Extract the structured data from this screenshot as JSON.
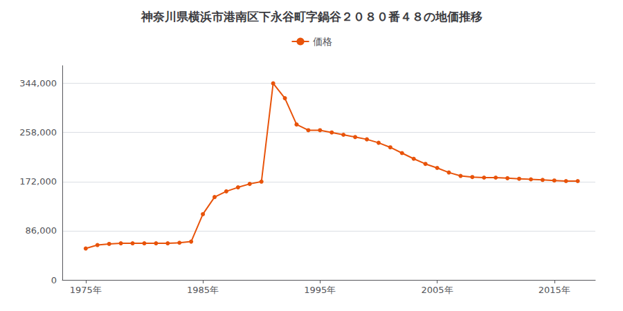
{
  "chart_data": {
    "type": "line",
    "title": "神奈川県横浜市港南区下永谷町字鍋谷２０８０番４８の地価推移",
    "x": [
      1975,
      1976,
      1977,
      1978,
      1979,
      1980,
      1981,
      1982,
      1983,
      1984,
      1985,
      1986,
      1987,
      1988,
      1989,
      1990,
      1991,
      1992,
      1993,
      1994,
      1995,
      1996,
      1997,
      1998,
      1999,
      2000,
      2001,
      2002,
      2003,
      2004,
      2005,
      2006,
      2007,
      2008,
      2009,
      2010,
      2011,
      2012,
      2013,
      2014,
      2015,
      2016,
      2017
    ],
    "series": [
      {
        "name": "価格",
        "color": "#E8530A",
        "marker": "circle",
        "values": [
          55000,
          61000,
          63000,
          64000,
          64000,
          64000,
          64000,
          64000,
          65000,
          67000,
          115000,
          145000,
          155000,
          162000,
          168000,
          172000,
          344000,
          318000,
          272000,
          262000,
          262000,
          258000,
          254000,
          250000,
          246000,
          240000,
          232000,
          222000,
          212000,
          203000,
          196000,
          188000,
          182000,
          180000,
          179000,
          179000,
          178000,
          177000,
          176000,
          175000,
          174000,
          173000,
          173000
        ]
      }
    ],
    "xlim": [
      1973,
      2018.5
    ],
    "xticks": [
      {
        "value": 1975,
        "label": "1975年"
      },
      {
        "value": 1985,
        "label": "1985年"
      },
      {
        "value": 1995,
        "label": "1995年"
      },
      {
        "value": 2005,
        "label": "2005年"
      },
      {
        "value": 2015,
        "label": "2015年"
      }
    ],
    "ylim": [
      0,
      375000
    ],
    "yticks": [
      0,
      {
        "value": 86000,
        "label": "86,000"
      },
      {
        "value": 172000,
        "label": "172,000"
      },
      {
        "value": 258000,
        "label": "258,000"
      },
      {
        "value": 344000,
        "label": "344,000"
      }
    ],
    "grid": true,
    "legend": "top"
  }
}
